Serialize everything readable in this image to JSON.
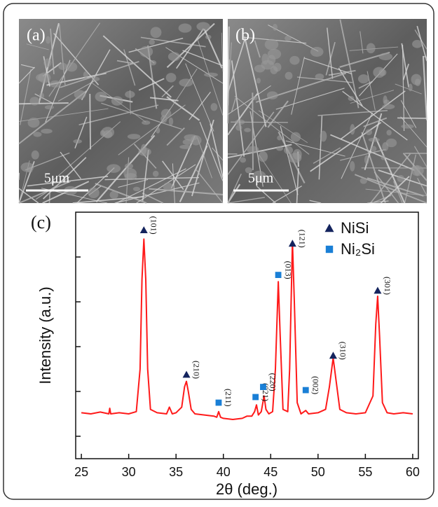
{
  "panels": [
    {
      "label": "(a)",
      "scale_bar": "5μm"
    },
    {
      "label": "(b)",
      "scale_bar": "5μm"
    }
  ],
  "chart_data": {
    "type": "line",
    "panel_label": "(c)",
    "y_label": "Intensity (a.u.)",
    "x_label": "2θ (deg.)",
    "color": "#ff1a1a",
    "x": [
      25,
      26,
      27,
      27.9,
      28,
      28.1,
      29,
      30,
      30.8,
      31.2,
      31.4,
      31.6,
      31.8,
      32.0,
      32.3,
      33,
      34,
      34.3,
      34.6,
      35,
      35.6,
      35.9,
      36.1,
      36.3,
      36.6,
      37,
      38,
      39,
      39.3,
      39.5,
      39.7,
      40,
      41,
      42,
      42.5,
      43,
      43.3,
      43.5,
      43.7,
      44.0,
      44.3,
      44.5,
      44.8,
      45.2,
      45.5,
      45.8,
      46.0,
      46.3,
      46.8,
      47.0,
      47.3,
      47.5,
      47.8,
      48.2,
      48.7,
      49,
      50,
      50.8,
      51.2,
      51.6,
      51.9,
      52.3,
      53,
      54,
      55,
      55.8,
      56.1,
      56.3,
      56.5,
      56.8,
      57.3,
      58,
      59,
      60
    ],
    "values": [
      10.5,
      10,
      10.8,
      10,
      12.5,
      10,
      10.5,
      10,
      11,
      30,
      70,
      88,
      70,
      30,
      12,
      10.5,
      10,
      13,
      10,
      10.5,
      13,
      22,
      24.5,
      20,
      12,
      10,
      9.5,
      9,
      8.5,
      11,
      8.5,
      8,
      7.5,
      8,
      9,
      9,
      11,
      14,
      9.5,
      11,
      18,
      12,
      10,
      11,
      30,
      69,
      45,
      12,
      11,
      30,
      87,
      60,
      15,
      10,
      11.5,
      10,
      10.5,
      12,
      22,
      35,
      25,
      12,
      10.5,
      10,
      10.5,
      18,
      50,
      62.5,
      45,
      15,
      10.5,
      10,
      10.5,
      10
    ],
    "xlim": [
      24.4,
      60.6
    ],
    "xticks": [
      25,
      30,
      35,
      40,
      45,
      50,
      55,
      60
    ],
    "ylim": [
      -10,
      100
    ],
    "yticks": [
      0,
      20,
      40,
      60,
      80
    ],
    "markers": [
      {
        "name": "NiSi",
        "color": "#14245e",
        "symbol": "triangle",
        "points": [
          {
            "x": 31.6,
            "y": 92,
            "label": "(101)"
          },
          {
            "x": 36.1,
            "y": 27.5,
            "label": "(210)"
          },
          {
            "x": 47.3,
            "y": 86,
            "label": "(121)"
          },
          {
            "x": 51.6,
            "y": 36,
            "label": "(310)"
          },
          {
            "x": 56.3,
            "y": 65,
            "label": "(301)"
          }
        ]
      },
      {
        "name": "Ni₂Si",
        "color": "#1a7fd6",
        "symbol": "square",
        "points": [
          {
            "x": 39.5,
            "y": 15,
            "label": "(211)"
          },
          {
            "x": 43.4,
            "y": 17.5,
            "label": "(021)"
          },
          {
            "x": 44.2,
            "y": 22,
            "label": "(220)"
          },
          {
            "x": 45.8,
            "y": 72,
            "label": "(013)"
          },
          {
            "x": 48.7,
            "y": 20.6,
            "label": "(002)"
          }
        ]
      }
    ]
  }
}
